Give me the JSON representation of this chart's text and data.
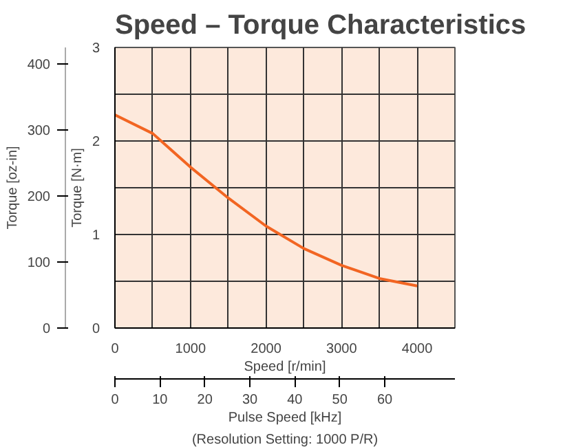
{
  "chart_data": {
    "type": "line",
    "title": "Speed – Torque Characteristics",
    "x": [
      0,
      500,
      1000,
      1500,
      2000,
      2500,
      3000,
      3500,
      4000
    ],
    "series": [
      {
        "color": "#f26522",
        "values": [
          2.28,
          2.08,
          1.72,
          1.39,
          1.09,
          0.85,
          0.67,
          0.53,
          0.45
        ]
      }
    ],
    "xlabel": "Speed [r/min]",
    "ylabel": "Torque [N·m]",
    "y2label": "Torque [oz-in]",
    "x2label": "Pulse Speed [kHz]",
    "xlim": [
      0,
      4500
    ],
    "ylim": [
      0,
      3
    ],
    "y2lim": [
      0,
      424.8
    ],
    "x2lim": [
      0,
      75.6
    ],
    "xticks": [
      0,
      {
        "value": 500,
        "label": null
      },
      1000,
      {
        "value": 1500,
        "label": null
      },
      2000,
      {
        "value": 2500,
        "label": null
      },
      3000,
      {
        "value": 3500,
        "label": null
      },
      4000
    ],
    "yticks": [
      0,
      {
        "value": 0.5,
        "label": null
      },
      1,
      {
        "value": 1.5,
        "label": null
      },
      2,
      {
        "value": 2.5,
        "label": null
      },
      3
    ],
    "y2ticks": [
      0,
      100,
      200,
      300,
      400
    ],
    "x2ticks": [
      0,
      10,
      20,
      30,
      40,
      50,
      60
    ],
    "annotations": [
      "(Resolution Setting: 1000 P/R)"
    ],
    "grid": true,
    "marker": "none",
    "line_style": "solid"
  }
}
